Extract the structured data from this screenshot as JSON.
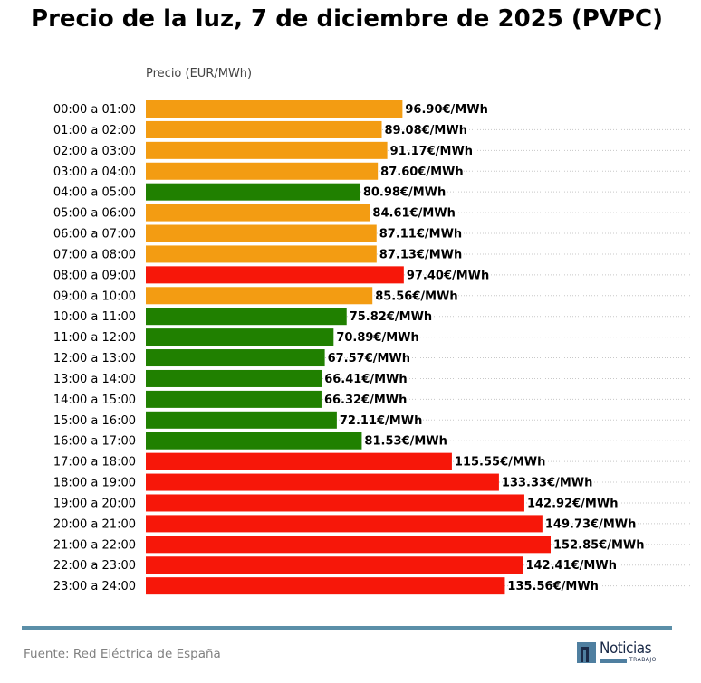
{
  "header": {
    "title": "Precio de la luz, 7 de diciembre de 2025 (PVPC)",
    "axis_label": "Precio (EUR/MWh)"
  },
  "footer": {
    "source": "Fuente: Red Eléctrica de España",
    "logo_text": "Noticias",
    "logo_subtext": "TRABAJO"
  },
  "colors": {
    "high": "#F71709",
    "medium": "#F39C12",
    "low": "#208000",
    "grid": "#c8c8c8",
    "rule": "#5b8fa8"
  },
  "chart_data": {
    "type": "bar",
    "orientation": "horizontal",
    "title": "Precio de la luz, 7 de diciembre de 2025 (PVPC)",
    "xlabel": "Precio (EUR/MWh)",
    "ylabel": "",
    "unit_suffix": "€/MWh",
    "xlim": [
      0,
      205
    ],
    "grid": "dotted horizontal",
    "categories": [
      "00:00 a 01:00",
      "01:00 a 02:00",
      "02:00 a 03:00",
      "03:00 a 04:00",
      "04:00 a 05:00",
      "05:00 a 06:00",
      "06:00 a 07:00",
      "07:00 a 08:00",
      "08:00 a 09:00",
      "09:00 a 10:00",
      "10:00 a 11:00",
      "11:00 a 12:00",
      "12:00 a 13:00",
      "13:00 a 14:00",
      "14:00 a 15:00",
      "15:00 a 16:00",
      "16:00 a 17:00",
      "17:00 a 18:00",
      "18:00 a 19:00",
      "19:00 a 20:00",
      "20:00 a 21:00",
      "21:00 a 22:00",
      "22:00 a 23:00",
      "23:00 a 24:00"
    ],
    "values": [
      96.9,
      89.08,
      91.17,
      87.6,
      80.98,
      84.61,
      87.11,
      87.13,
      97.4,
      85.56,
      75.82,
      70.89,
      67.57,
      66.41,
      66.32,
      72.11,
      81.53,
      115.55,
      133.33,
      142.92,
      149.73,
      152.85,
      142.41,
      135.56
    ],
    "levels": [
      "medium",
      "medium",
      "medium",
      "medium",
      "low",
      "medium",
      "medium",
      "medium",
      "high",
      "medium",
      "low",
      "low",
      "low",
      "low",
      "low",
      "low",
      "low",
      "high",
      "high",
      "high",
      "high",
      "high",
      "high",
      "high"
    ],
    "data_labels": [
      "96.90€/MWh",
      "89.08€/MWh",
      "91.17€/MWh",
      "87.60€/MWh",
      "80.98€/MWh",
      "84.61€/MWh",
      "87.11€/MWh",
      "87.13€/MWh",
      "97.40€/MWh",
      "85.56€/MWh",
      "75.82€/MWh",
      "70.89€/MWh",
      "67.57€/MWh",
      "66.41€/MWh",
      "66.32€/MWh",
      "72.11€/MWh",
      "81.53€/MWh",
      "115.55€/MWh",
      "133.33€/MWh",
      "142.92€/MWh",
      "149.73€/MWh",
      "152.85€/MWh",
      "142.41€/MWh",
      "135.56€/MWh"
    ]
  }
}
